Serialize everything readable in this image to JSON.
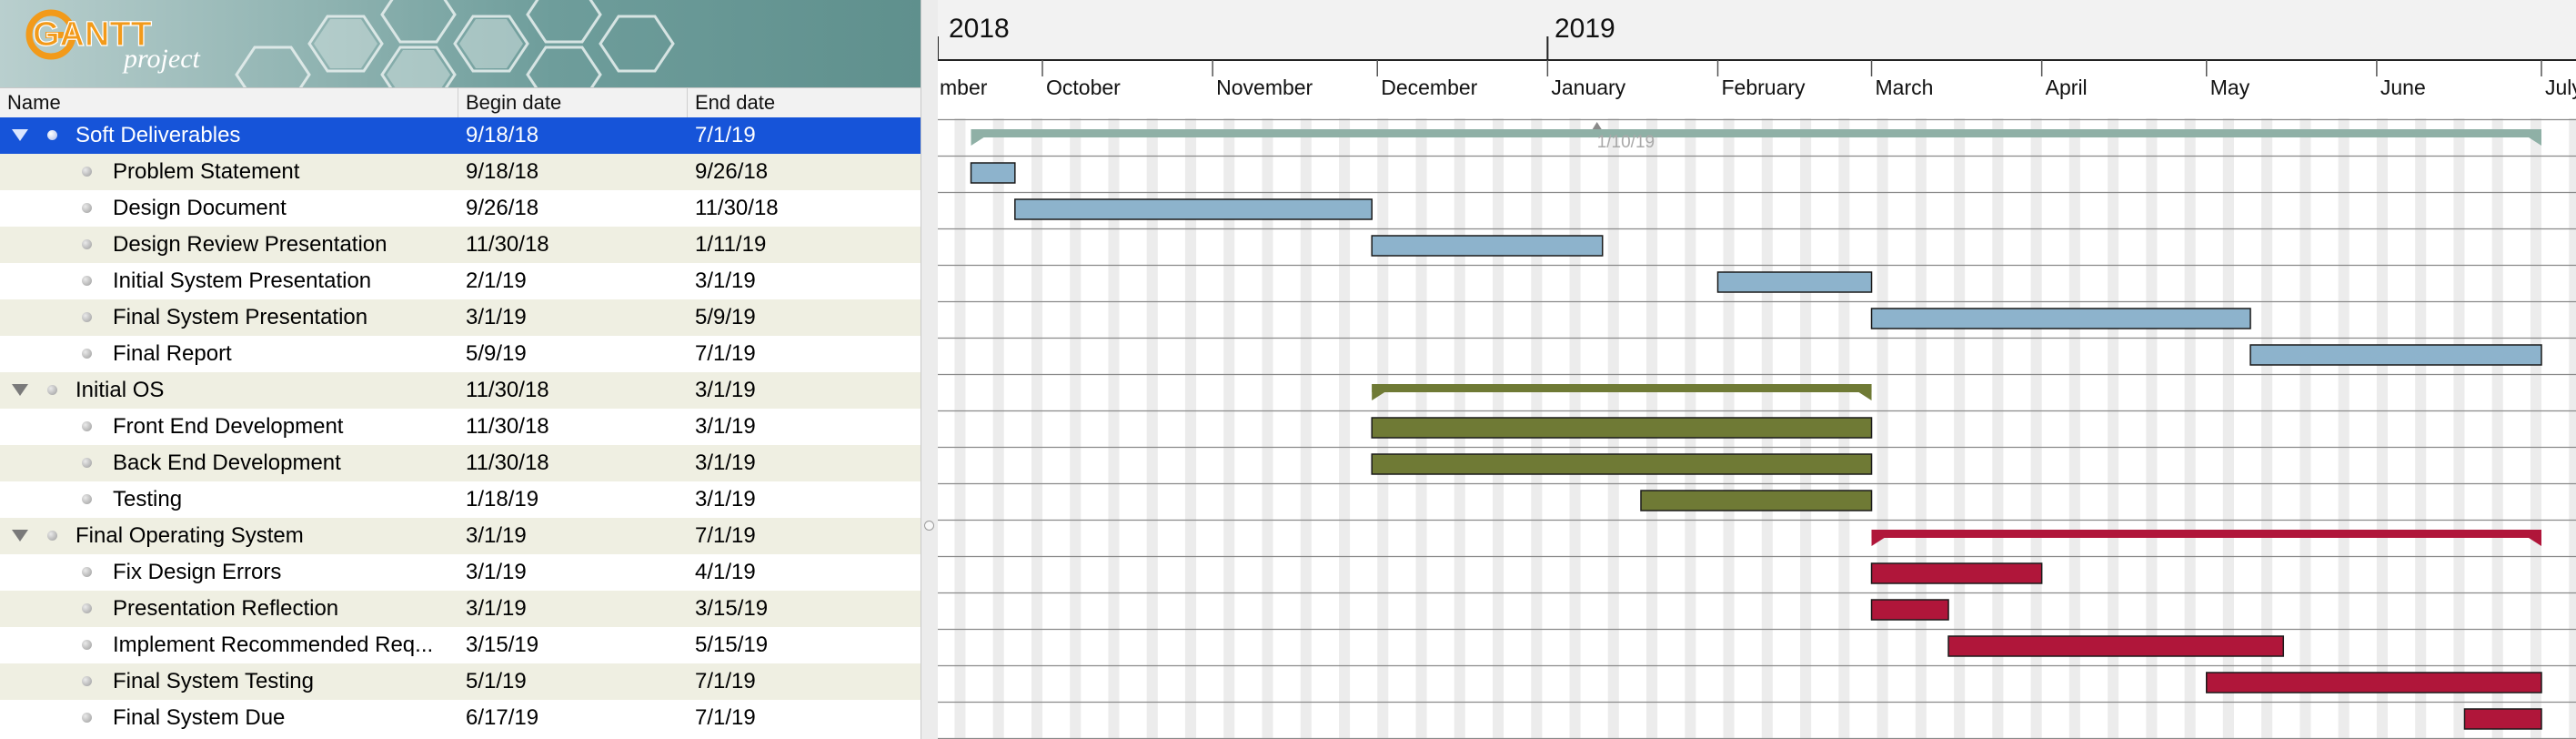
{
  "app": {
    "logo_main": "GANTT",
    "logo_sub": "project"
  },
  "table": {
    "columns": {
      "name": "Name",
      "begin": "Begin date",
      "end": "End date"
    },
    "rows": [
      {
        "name": "Soft Deliverables",
        "begin": "9/18/18",
        "end": "7/1/19",
        "level": 0,
        "group": true,
        "selected": true
      },
      {
        "name": "Problem Statement",
        "begin": "9/18/18",
        "end": "9/26/18",
        "level": 1
      },
      {
        "name": "Design Document",
        "begin": "9/26/18",
        "end": "11/30/18",
        "level": 1
      },
      {
        "name": "Design Review Presentation",
        "begin": "11/30/18",
        "end": "1/11/19",
        "level": 1
      },
      {
        "name": "Initial System Presentation",
        "begin": "2/1/19",
        "end": "3/1/19",
        "level": 1
      },
      {
        "name": "Final System Presentation",
        "begin": "3/1/19",
        "end": "5/9/19",
        "level": 1
      },
      {
        "name": "Final Report",
        "begin": "5/9/19",
        "end": "7/1/19",
        "level": 1
      },
      {
        "name": "Initial OS",
        "begin": "11/30/18",
        "end": "3/1/19",
        "level": 0,
        "group": true
      },
      {
        "name": "Front End Development",
        "begin": "11/30/18",
        "end": "3/1/19",
        "level": 1
      },
      {
        "name": "Back End Development",
        "begin": "11/30/18",
        "end": "3/1/19",
        "level": 1
      },
      {
        "name": "Testing",
        "begin": "1/18/19",
        "end": "3/1/19",
        "level": 1
      },
      {
        "name": "Final Operating System",
        "begin": "3/1/19",
        "end": "7/1/19",
        "level": 0,
        "group": true
      },
      {
        "name": "Fix Design Errors",
        "begin": "3/1/19",
        "end": "4/1/19",
        "level": 1
      },
      {
        "name": "Presentation Reflection",
        "begin": "3/1/19",
        "end": "3/15/19",
        "level": 1
      },
      {
        "name": "Implement Recommended Req...",
        "begin": "3/15/19",
        "end": "5/15/19",
        "level": 1
      },
      {
        "name": "Final System Testing",
        "begin": "5/1/19",
        "end": "7/1/19",
        "level": 1
      },
      {
        "name": "Final System Due",
        "begin": "6/17/19",
        "end": "7/1/19",
        "level": 1
      }
    ]
  },
  "timeline": {
    "years": [
      "2018",
      "2019"
    ],
    "months": [
      "mber",
      "October",
      "November",
      "December",
      "January",
      "February",
      "March",
      "April",
      "May",
      "June",
      "July"
    ],
    "today_marker": "1/10/19"
  },
  "colors": {
    "selection": "#1654d9",
    "alt_row": "#efefe2",
    "soft_deliverables_group": "#8fb0a6",
    "soft_deliverables_task": "#8db3cc",
    "initial_os": "#6f7a35",
    "final_os": "#b0163a"
  }
}
